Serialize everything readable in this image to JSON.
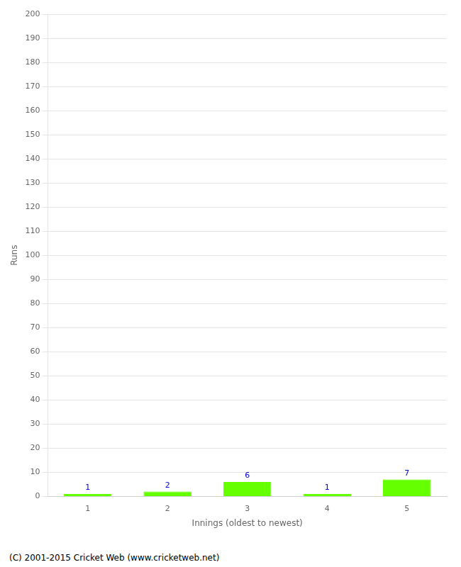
{
  "chart_data": {
    "type": "bar",
    "xlabel": "Innings (oldest to newest)",
    "ylabel": "Runs",
    "categories": [
      1,
      2,
      3,
      4,
      5
    ],
    "values": [
      1,
      2,
      6,
      1,
      7
    ],
    "color": "#66ff00",
    "ylim": [
      0,
      200
    ],
    "yticks": [
      0,
      10,
      20,
      30,
      40,
      50,
      60,
      70,
      80,
      90,
      100,
      110,
      120,
      130,
      140,
      150,
      160,
      170,
      180,
      190,
      200
    ],
    "grid": true,
    "data_labels": true,
    "annotations": [
      "(C) 2001-2015 Cricket Web (www.cricketweb.net)"
    ]
  }
}
